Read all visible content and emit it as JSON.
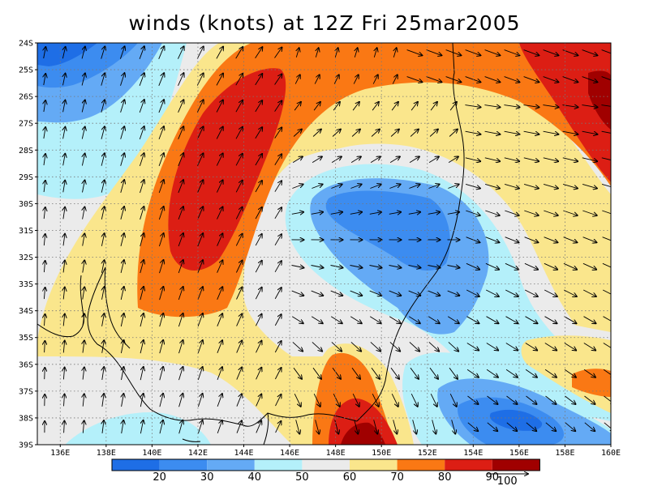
{
  "title": "winds (knots) at 12Z Fri 25mar2005",
  "map": {
    "lon_range": [
      135,
      160
    ],
    "lat_range": [
      -39,
      -24
    ],
    "lon_labels": [
      "136E",
      "138E",
      "140E",
      "142E",
      "144E",
      "146E",
      "148E",
      "150E",
      "152E",
      "154E",
      "156E",
      "158E",
      "160E"
    ],
    "lat_labels": [
      "24S",
      "25S",
      "26S",
      "27S",
      "28S",
      "29S",
      "30S",
      "31S",
      "32S",
      "33S",
      "34S",
      "35S",
      "36S",
      "37S",
      "38S",
      "39S"
    ],
    "grid": "dotted"
  },
  "colorbar": {
    "labels": [
      "20",
      "30",
      "40",
      "50",
      "60",
      "70",
      "80",
      "90",
      "100"
    ],
    "colors": [
      "#1e6ee6",
      "#3c8cf0",
      "#64aaf5",
      "#b4f0fa",
      "#ebebeb",
      "#fae68c",
      "#fa7814",
      "#dc1e14",
      "#a00000"
    ],
    "reference_vector_label": "100"
  },
  "colors": {
    "c20": "#1e6ee6",
    "c30": "#3c8cf0",
    "c40": "#64aaf5",
    "c50": "#b4f0fa",
    "c60": "#ebebeb",
    "c70": "#fae68c",
    "c80": "#fa7814",
    "c90": "#dc1e14",
    "c100": "#a00000"
  }
}
